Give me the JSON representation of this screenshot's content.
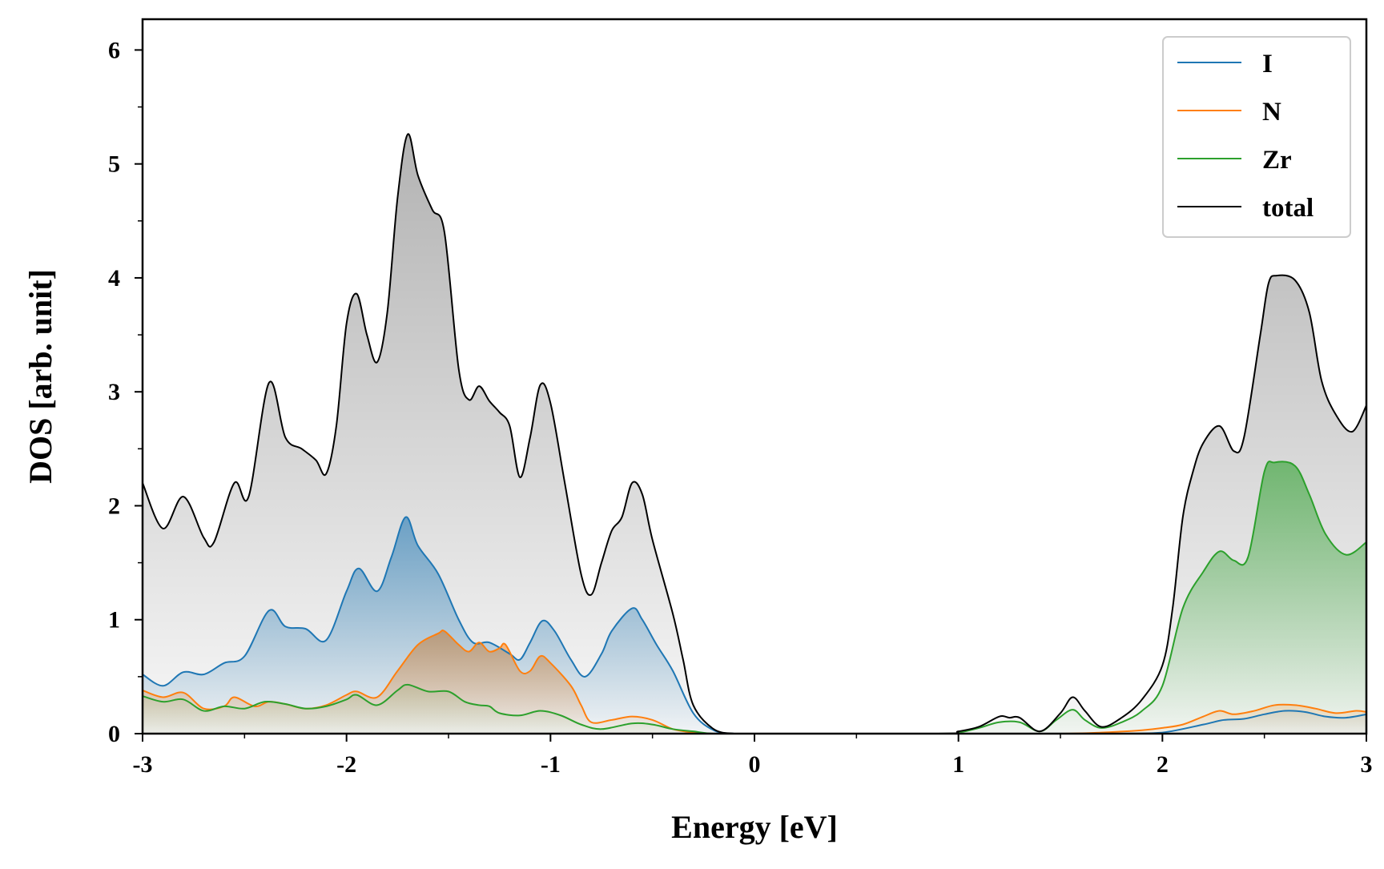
{
  "chart_data": {
    "type": "area",
    "xlabel": "Energy [eV]",
    "ylabel": "DOS [arb. unit]",
    "xlim": [
      -3,
      3
    ],
    "ylim": [
      0,
      6.27
    ],
    "x_ticks": [
      -3,
      -2,
      -1,
      0,
      1,
      2,
      3
    ],
    "x_tick_labels": [
      "-3",
      "-2",
      "-1",
      "0",
      "1",
      "2",
      "3"
    ],
    "y_ticks": [
      0,
      1,
      2,
      3,
      4,
      5,
      6
    ],
    "y_tick_labels": [
      "0",
      "1",
      "2",
      "3",
      "4",
      "5",
      "6"
    ],
    "legend_position": "top-right",
    "series": [
      {
        "name": "I",
        "color": "#1f77b4",
        "filled": true,
        "points": [
          [
            -3.0,
            0.52
          ],
          [
            -2.9,
            0.42
          ],
          [
            -2.8,
            0.54
          ],
          [
            -2.7,
            0.52
          ],
          [
            -2.6,
            0.62
          ],
          [
            -2.5,
            0.68
          ],
          [
            -2.38,
            1.08
          ],
          [
            -2.3,
            0.94
          ],
          [
            -2.2,
            0.92
          ],
          [
            -2.1,
            0.82
          ],
          [
            -2.0,
            1.25
          ],
          [
            -1.94,
            1.45
          ],
          [
            -1.85,
            1.25
          ],
          [
            -1.78,
            1.55
          ],
          [
            -1.71,
            1.9
          ],
          [
            -1.65,
            1.65
          ],
          [
            -1.55,
            1.4
          ],
          [
            -1.45,
            1.0
          ],
          [
            -1.38,
            0.8
          ],
          [
            -1.3,
            0.8
          ],
          [
            -1.2,
            0.7
          ],
          [
            -1.15,
            0.65
          ],
          [
            -1.1,
            0.8
          ],
          [
            -1.04,
            0.99
          ],
          [
            -0.98,
            0.9
          ],
          [
            -0.9,
            0.65
          ],
          [
            -0.83,
            0.5
          ],
          [
            -0.75,
            0.7
          ],
          [
            -0.7,
            0.9
          ],
          [
            -0.6,
            1.1
          ],
          [
            -0.55,
            1.0
          ],
          [
            -0.48,
            0.78
          ],
          [
            -0.4,
            0.55
          ],
          [
            -0.3,
            0.18
          ],
          [
            -0.2,
            0.03
          ],
          [
            -0.1,
            0.0
          ],
          [
            0.0,
            0.0
          ],
          [
            1.0,
            0.0
          ],
          [
            1.6,
            0.0
          ],
          [
            1.8,
            0.0
          ],
          [
            2.0,
            0.01
          ],
          [
            2.2,
            0.08
          ],
          [
            2.3,
            0.12
          ],
          [
            2.4,
            0.13
          ],
          [
            2.5,
            0.17
          ],
          [
            2.6,
            0.2
          ],
          [
            2.7,
            0.19
          ],
          [
            2.8,
            0.15
          ],
          [
            2.9,
            0.14
          ],
          [
            3.0,
            0.17
          ]
        ]
      },
      {
        "name": "N",
        "color": "#ff7f0e",
        "filled": true,
        "points": [
          [
            -3.0,
            0.38
          ],
          [
            -2.9,
            0.32
          ],
          [
            -2.8,
            0.36
          ],
          [
            -2.7,
            0.22
          ],
          [
            -2.6,
            0.24
          ],
          [
            -2.55,
            0.32
          ],
          [
            -2.45,
            0.24
          ],
          [
            -2.38,
            0.28
          ],
          [
            -2.3,
            0.26
          ],
          [
            -2.2,
            0.22
          ],
          [
            -2.1,
            0.25
          ],
          [
            -2.0,
            0.34
          ],
          [
            -1.95,
            0.37
          ],
          [
            -1.85,
            0.32
          ],
          [
            -1.75,
            0.55
          ],
          [
            -1.65,
            0.78
          ],
          [
            -1.55,
            0.88
          ],
          [
            -1.52,
            0.9
          ],
          [
            -1.45,
            0.78
          ],
          [
            -1.4,
            0.72
          ],
          [
            -1.35,
            0.8
          ],
          [
            -1.3,
            0.72
          ],
          [
            -1.25,
            0.75
          ],
          [
            -1.22,
            0.78
          ],
          [
            -1.15,
            0.55
          ],
          [
            -1.1,
            0.55
          ],
          [
            -1.05,
            0.68
          ],
          [
            -1.0,
            0.62
          ],
          [
            -0.9,
            0.42
          ],
          [
            -0.85,
            0.25
          ],
          [
            -0.8,
            0.1
          ],
          [
            -0.7,
            0.12
          ],
          [
            -0.6,
            0.15
          ],
          [
            -0.5,
            0.12
          ],
          [
            -0.4,
            0.04
          ],
          [
            -0.3,
            0.01
          ],
          [
            -0.2,
            0.0
          ],
          [
            0.0,
            0.0
          ],
          [
            1.0,
            0.0
          ],
          [
            1.5,
            0.0
          ],
          [
            1.7,
            0.01
          ],
          [
            1.9,
            0.03
          ],
          [
            2.0,
            0.05
          ],
          [
            2.1,
            0.08
          ],
          [
            2.2,
            0.15
          ],
          [
            2.28,
            0.2
          ],
          [
            2.35,
            0.17
          ],
          [
            2.45,
            0.2
          ],
          [
            2.55,
            0.25
          ],
          [
            2.65,
            0.25
          ],
          [
            2.75,
            0.22
          ],
          [
            2.85,
            0.18
          ],
          [
            2.95,
            0.2
          ],
          [
            3.0,
            0.19
          ]
        ]
      },
      {
        "name": "Zr",
        "color": "#2ca02c",
        "filled": true,
        "points": [
          [
            -3.0,
            0.33
          ],
          [
            -2.9,
            0.28
          ],
          [
            -2.8,
            0.3
          ],
          [
            -2.7,
            0.2
          ],
          [
            -2.6,
            0.24
          ],
          [
            -2.5,
            0.22
          ],
          [
            -2.4,
            0.28
          ],
          [
            -2.3,
            0.26
          ],
          [
            -2.2,
            0.22
          ],
          [
            -2.1,
            0.24
          ],
          [
            -2.0,
            0.3
          ],
          [
            -1.95,
            0.34
          ],
          [
            -1.85,
            0.25
          ],
          [
            -1.75,
            0.38
          ],
          [
            -1.7,
            0.43
          ],
          [
            -1.6,
            0.37
          ],
          [
            -1.5,
            0.37
          ],
          [
            -1.42,
            0.28
          ],
          [
            -1.35,
            0.25
          ],
          [
            -1.3,
            0.24
          ],
          [
            -1.25,
            0.18
          ],
          [
            -1.15,
            0.16
          ],
          [
            -1.05,
            0.2
          ],
          [
            -0.95,
            0.16
          ],
          [
            -0.85,
            0.08
          ],
          [
            -0.75,
            0.04
          ],
          [
            -0.6,
            0.09
          ],
          [
            -0.5,
            0.08
          ],
          [
            -0.4,
            0.04
          ],
          [
            -0.3,
            0.02
          ],
          [
            -0.2,
            0.0
          ],
          [
            0.0,
            0.0
          ],
          [
            0.9,
            0.0
          ],
          [
            1.0,
            0.01
          ],
          [
            1.1,
            0.05
          ],
          [
            1.2,
            0.1
          ],
          [
            1.3,
            0.1
          ],
          [
            1.4,
            0.02
          ],
          [
            1.48,
            0.12
          ],
          [
            1.56,
            0.21
          ],
          [
            1.62,
            0.12
          ],
          [
            1.7,
            0.05
          ],
          [
            1.8,
            0.1
          ],
          [
            1.9,
            0.2
          ],
          [
            2.0,
            0.42
          ],
          [
            2.1,
            1.1
          ],
          [
            2.2,
            1.42
          ],
          [
            2.28,
            1.6
          ],
          [
            2.35,
            1.52
          ],
          [
            2.42,
            1.55
          ],
          [
            2.5,
            2.3
          ],
          [
            2.55,
            2.38
          ],
          [
            2.65,
            2.35
          ],
          [
            2.72,
            2.1
          ],
          [
            2.8,
            1.75
          ],
          [
            2.9,
            1.57
          ],
          [
            3.0,
            1.68
          ]
        ]
      },
      {
        "name": "total",
        "color": "#000000",
        "filled": true,
        "points": [
          [
            -3.0,
            2.2
          ],
          [
            -2.9,
            1.8
          ],
          [
            -2.8,
            2.08
          ],
          [
            -2.7,
            1.72
          ],
          [
            -2.65,
            1.68
          ],
          [
            -2.55,
            2.2
          ],
          [
            -2.48,
            2.08
          ],
          [
            -2.38,
            3.08
          ],
          [
            -2.3,
            2.6
          ],
          [
            -2.22,
            2.5
          ],
          [
            -2.15,
            2.4
          ],
          [
            -2.1,
            2.28
          ],
          [
            -2.05,
            2.7
          ],
          [
            -2.0,
            3.6
          ],
          [
            -1.95,
            3.86
          ],
          [
            -1.9,
            3.5
          ],
          [
            -1.85,
            3.26
          ],
          [
            -1.8,
            3.7
          ],
          [
            -1.75,
            4.7
          ],
          [
            -1.7,
            5.26
          ],
          [
            -1.65,
            4.9
          ],
          [
            -1.58,
            4.6
          ],
          [
            -1.52,
            4.4
          ],
          [
            -1.45,
            3.2
          ],
          [
            -1.4,
            2.93
          ],
          [
            -1.35,
            3.05
          ],
          [
            -1.3,
            2.92
          ],
          [
            -1.25,
            2.82
          ],
          [
            -1.2,
            2.7
          ],
          [
            -1.15,
            2.25
          ],
          [
            -1.1,
            2.6
          ],
          [
            -1.05,
            3.06
          ],
          [
            -1.0,
            2.9
          ],
          [
            -0.93,
            2.2
          ],
          [
            -0.85,
            1.4
          ],
          [
            -0.8,
            1.22
          ],
          [
            -0.75,
            1.5
          ],
          [
            -0.7,
            1.78
          ],
          [
            -0.65,
            1.9
          ],
          [
            -0.6,
            2.2
          ],
          [
            -0.55,
            2.1
          ],
          [
            -0.5,
            1.7
          ],
          [
            -0.4,
            1.05
          ],
          [
            -0.35,
            0.65
          ],
          [
            -0.3,
            0.25
          ],
          [
            -0.2,
            0.04
          ],
          [
            -0.1,
            0.0
          ],
          [
            0.0,
            0.0
          ],
          [
            0.9,
            0.0
          ],
          [
            1.0,
            0.02
          ],
          [
            1.1,
            0.06
          ],
          [
            1.2,
            0.15
          ],
          [
            1.25,
            0.14
          ],
          [
            1.3,
            0.14
          ],
          [
            1.4,
            0.02
          ],
          [
            1.5,
            0.18
          ],
          [
            1.56,
            0.32
          ],
          [
            1.62,
            0.2
          ],
          [
            1.7,
            0.06
          ],
          [
            1.8,
            0.14
          ],
          [
            1.9,
            0.3
          ],
          [
            2.0,
            0.6
          ],
          [
            2.05,
            1.1
          ],
          [
            2.1,
            1.9
          ],
          [
            2.15,
            2.3
          ],
          [
            2.2,
            2.55
          ],
          [
            2.28,
            2.7
          ],
          [
            2.35,
            2.48
          ],
          [
            2.4,
            2.6
          ],
          [
            2.48,
            3.5
          ],
          [
            2.52,
            3.95
          ],
          [
            2.56,
            4.02
          ],
          [
            2.65,
            3.98
          ],
          [
            2.72,
            3.7
          ],
          [
            2.78,
            3.1
          ],
          [
            2.85,
            2.8
          ],
          [
            2.93,
            2.65
          ],
          [
            3.0,
            2.88
          ]
        ]
      }
    ]
  }
}
